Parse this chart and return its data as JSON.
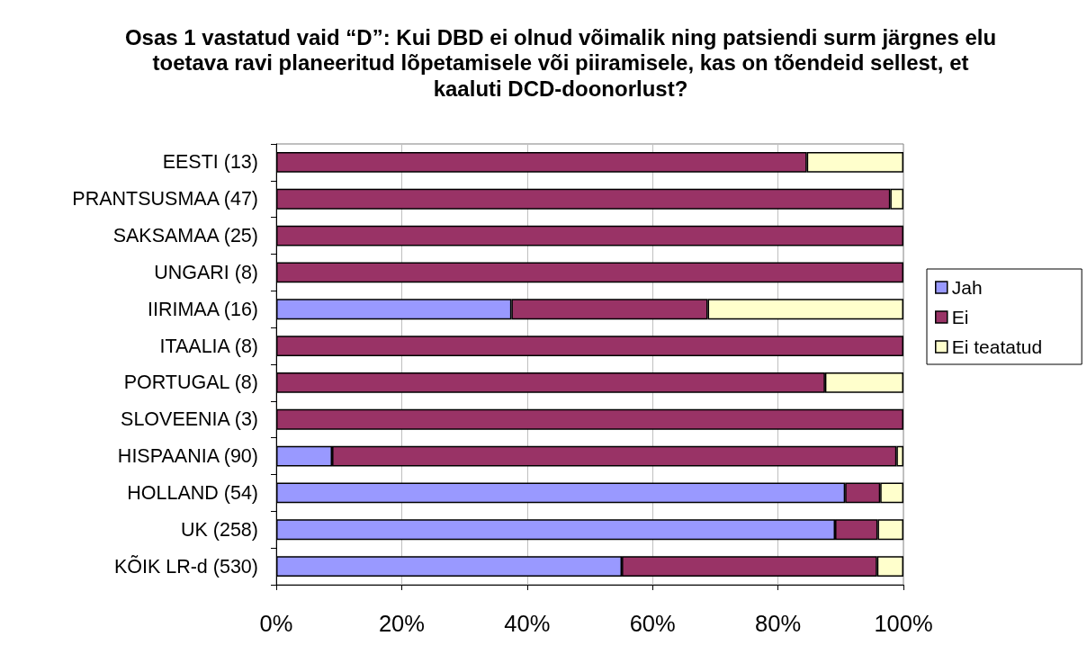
{
  "chart_data": {
    "type": "bar",
    "orientation": "horizontal",
    "stacked": true,
    "title": "Osas 1 vastatud vaid “D”: Kui DBD ei olnud võimalik ning patsiendi surm järgnes elu\ntoetava ravi planeeritud lõpetamisele või piiramisele, kas on tõendeid sellest, et\nkaaluti DCD-doonorlust?",
    "categories": [
      "EESTI (13)",
      "PRANTSUSMAA (47)",
      "SAKSAMAA (25)",
      "UNGARI (8)",
      "IIRIMAA (16)",
      "ITAALIA (8)",
      "PORTUGAL (8)",
      "SLOVEENIA (3)",
      "HISPAANIA (90)",
      "HOLLAND (54)",
      "UK (258)",
      "KÕIK LR-d (530)"
    ],
    "series": [
      {
        "name": "Jah",
        "color": "#9999ff",
        "values": [
          0,
          0,
          0,
          0,
          37.5,
          0,
          0,
          0,
          8.9,
          90.7,
          89.1,
          55.1
        ]
      },
      {
        "name": "Ei",
        "color": "#993366",
        "values": [
          84.6,
          97.9,
          100,
          100,
          31.3,
          100,
          87.5,
          100,
          90.0,
          5.6,
          6.8,
          40.7
        ]
      },
      {
        "name": "Ei teatatud",
        "color": "#ffffcc",
        "values": [
          15.4,
          2.1,
          0,
          0,
          31.2,
          0,
          12.5,
          0,
          1.1,
          3.7,
          4.1,
          4.2
        ]
      }
    ],
    "xlim": [
      0,
      100
    ],
    "xticks": [
      {
        "value": 0,
        "label": "0%"
      },
      {
        "value": 20,
        "label": "20%"
      },
      {
        "value": 40,
        "label": "40%"
      },
      {
        "value": 60,
        "label": "60%"
      },
      {
        "value": 80,
        "label": "80%"
      },
      {
        "value": 100,
        "label": "100%"
      }
    ],
    "grid": "x",
    "legend": "right"
  }
}
